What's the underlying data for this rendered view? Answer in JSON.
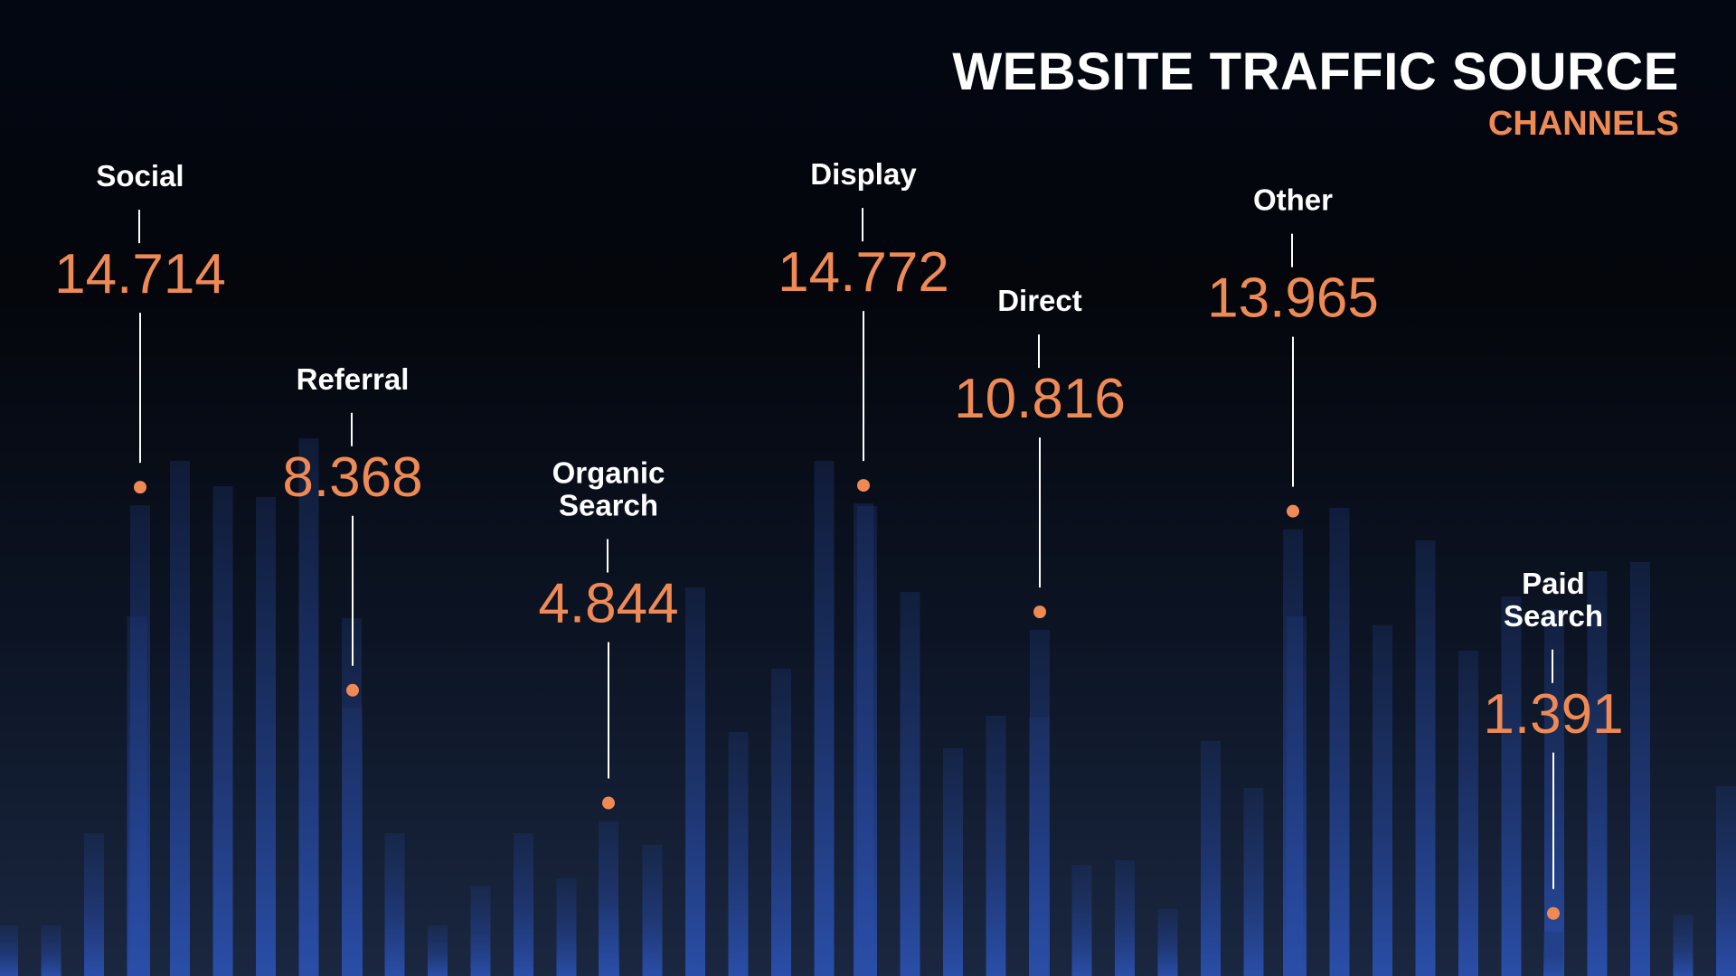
{
  "title": "WEBSITE TRAFFIC SOURCE",
  "subtitle": "CHANNELS",
  "colors": {
    "accent": "#f08a55",
    "bar": "#24448f",
    "text": "#ffffff"
  },
  "chart_data": {
    "type": "bar",
    "title": "WEBSITE TRAFFIC SOURCE",
    "subtitle": "CHANNELS",
    "grid": false,
    "series": [
      {
        "values": [
          {
            "category": "Social",
            "value": 14.714,
            "label": "14.714"
          },
          {
            "category": "Referral",
            "value": 8.368,
            "label": "8.368"
          },
          {
            "category": "Organic Search",
            "value": 4.844,
            "label": "4.844"
          },
          {
            "category": "Display",
            "value": 14.772,
            "label": "14.772"
          },
          {
            "category": "Direct",
            "value": 10.816,
            "label": "10.816"
          },
          {
            "category": "Other",
            "value": 13.965,
            "label": "13.965"
          },
          {
            "category": "Paid Search",
            "value": 1.391,
            "label": "1.391"
          }
        ]
      }
    ]
  }
}
